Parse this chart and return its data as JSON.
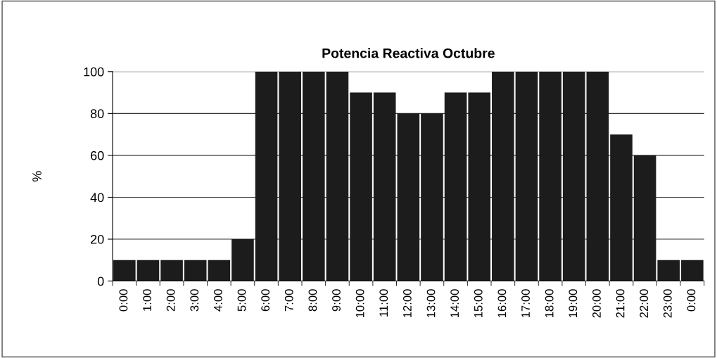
{
  "chart_data": {
    "type": "bar",
    "title": "Potencia Reactiva Octubre",
    "ylabel": "%",
    "categories": [
      "0:00",
      "1:00",
      "2:00",
      "3:00",
      "4:00",
      "5:00",
      "6:00",
      "7:00",
      "8:00",
      "9:00",
      "10:00",
      "11:00",
      "12:00",
      "13:00",
      "14:00",
      "15:00",
      "16:00",
      "17:00",
      "18:00",
      "19:00",
      "20:00",
      "21:00",
      "22:00",
      "23:00",
      "0:00"
    ],
    "values": [
      10,
      10,
      10,
      10,
      10,
      20,
      100,
      100,
      100,
      100,
      90,
      90,
      80,
      80,
      90,
      90,
      100,
      100,
      100,
      100,
      100,
      70,
      60,
      10,
      10
    ],
    "color": "#1c1c1c",
    "ylim": [
      0,
      100
    ],
    "yticks": [
      0,
      20,
      40,
      60,
      80,
      100
    ],
    "grid": "y"
  }
}
